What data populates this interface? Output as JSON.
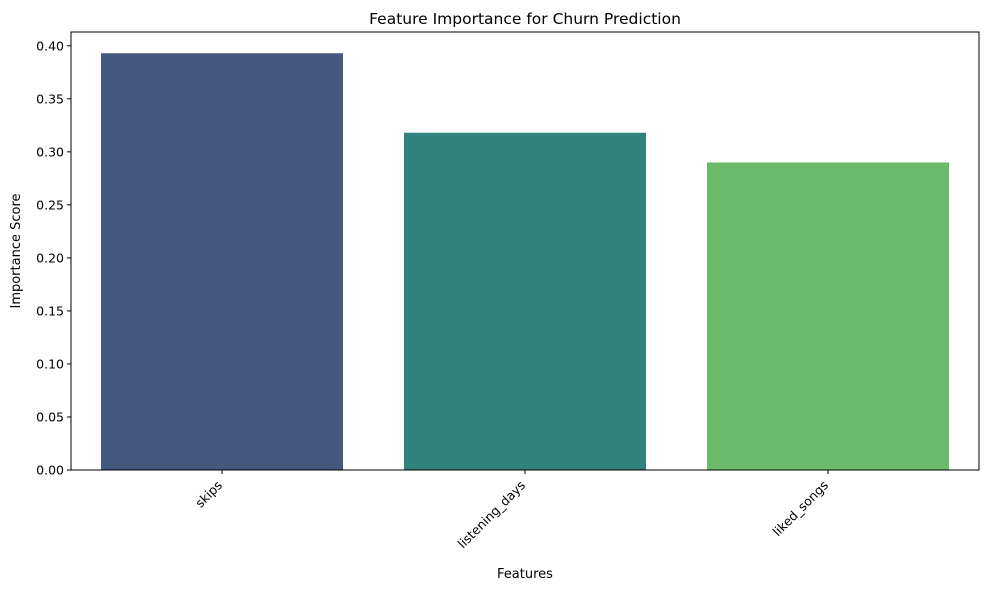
{
  "chart_data": {
    "type": "bar",
    "title": "Feature Importance for Churn Prediction",
    "xlabel": "Features",
    "ylabel": "Importance Score",
    "categories": [
      "skips",
      "listening_days",
      "liked_songs"
    ],
    "values": [
      0.393,
      0.318,
      0.29
    ],
    "colors": [
      "#45597f",
      "#2f837c",
      "#6cbb6b"
    ],
    "ylim": [
      0,
      0.413
    ],
    "yticks": [
      0.0,
      0.05,
      0.1,
      0.15,
      0.2,
      0.25,
      0.3,
      0.35,
      0.4
    ],
    "ytick_labels": [
      "0.00",
      "0.05",
      "0.10",
      "0.15",
      "0.20",
      "0.25",
      "0.30",
      "0.35",
      "0.40"
    ],
    "grid": false,
    "xtick_rotation": -45
  }
}
